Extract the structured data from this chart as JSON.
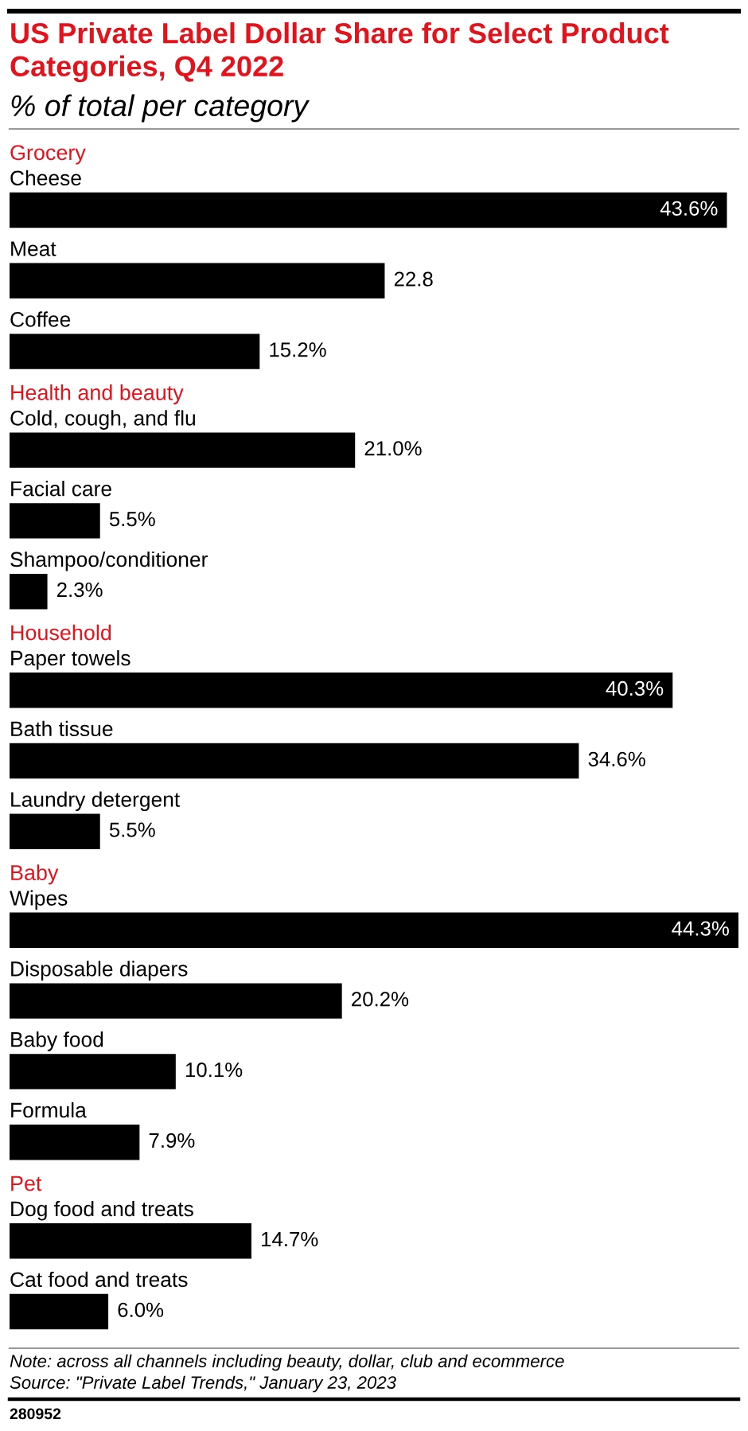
{
  "chart_data": [
    {
      "type": "other",
      "title": "US Private Label Dollar Share for Select Product Categories, Q4 2022",
      "subtitle": "% of total per category",
      "annotations": [
        "Note: across all channels including beauty, dollar, club and ecommerce",
        "Source: \"Private Label Trends,\" January 23, 2023",
        "280952"
      ]
    },
    {
      "type": "bar",
      "orientation": "horizontal",
      "title": "Grocery",
      "categories": [
        "Cheese",
        "Meat",
        "Coffee"
      ],
      "values": [
        43.6,
        22.8,
        15.2
      ],
      "value_labels": [
        "43.6%",
        "22.8",
        "15.2%"
      ],
      "color": "#000000",
      "tick_labels": "y"
    },
    {
      "type": "bar",
      "orientation": "horizontal",
      "title": "Health and beauty",
      "categories": [
        "Cold, cough, and flu",
        "Facial care",
        "Shampoo/conditioner"
      ],
      "values": [
        21.0,
        5.5,
        2.3
      ],
      "value_labels": [
        "21.0%",
        "5.5%",
        "2.3%"
      ],
      "color": "#000000",
      "tick_labels": "y"
    },
    {
      "type": "bar",
      "orientation": "horizontal",
      "title": "Household",
      "categories": [
        "Paper towels",
        "Bath tissue",
        "Laundry detergent"
      ],
      "values": [
        40.3,
        34.6,
        5.5
      ],
      "value_labels": [
        "40.3%",
        "34.6%",
        "5.5%"
      ],
      "color": "#000000",
      "tick_labels": "y"
    },
    {
      "type": "bar",
      "orientation": "horizontal",
      "title": "Baby",
      "categories": [
        "Wipes",
        "Disposable diapers",
        "Baby food",
        "Formula"
      ],
      "values": [
        44.3,
        20.2,
        10.1,
        7.9
      ],
      "value_labels": [
        "44.3%",
        "20.2%",
        "10.1%",
        "7.9%"
      ],
      "color": "#000000",
      "tick_labels": "y"
    },
    {
      "type": "bar",
      "orientation": "horizontal",
      "title": "Pet",
      "categories": [
        "Dog food and treats",
        "Cat food and treats"
      ],
      "values": [
        14.7,
        6.0
      ],
      "value_labels": [
        "14.7%",
        "6.0%"
      ],
      "color": "#000000",
      "tick_labels": "y"
    }
  ]
}
